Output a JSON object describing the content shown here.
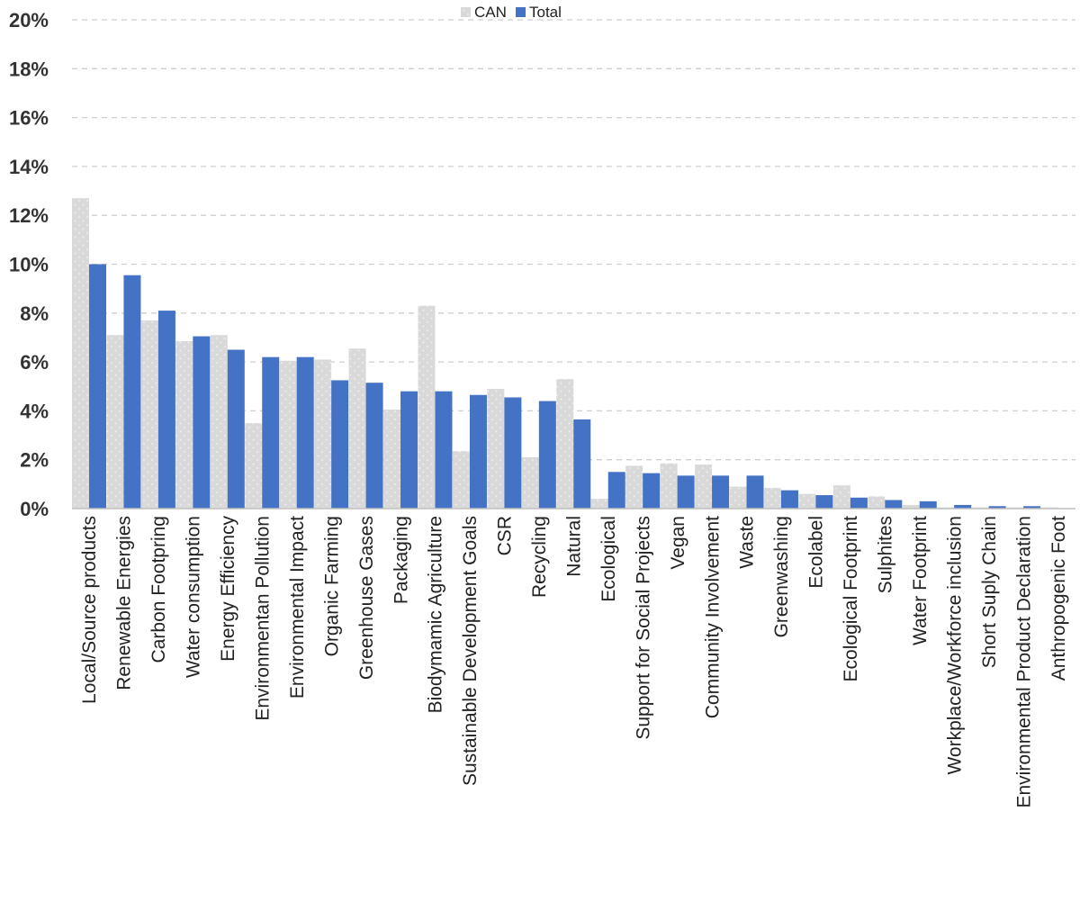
{
  "chart_data": {
    "type": "bar",
    "title": "",
    "xlabel": "",
    "ylabel": "",
    "ylim": [
      0,
      20
    ],
    "ytick_step": 2,
    "ytick_suffix": "%",
    "grid": true,
    "legend_position": "top-center",
    "categories": [
      "Local/Source products",
      "Renewable Energies",
      "Carbon Footpring",
      "Water consumption",
      "Energy Efficiency",
      "Environmentan Pollution",
      "Environmental Impact",
      "Organic Farming",
      "Greenhouse Gases",
      "Packaging",
      "Biodymamic Agriculture",
      "Sustainable Development Goals",
      "CSR",
      "Recycling",
      "Natural",
      "Ecological",
      "Support for Social Projects",
      "Vegan",
      "Community Involvement",
      "Waste",
      "Greenwashing",
      "Ecolabel",
      "Ecological Footprint",
      "Sulphites",
      "Water Footprint",
      "Workplace/Workforce inclusion",
      "Short Suply Chain",
      "Environmental Product Declaration",
      "Anthropogenic Foot"
    ],
    "series": [
      {
        "name": "CAN",
        "color": "#d9d9d9",
        "values": [
          12.7,
          7.1,
          7.7,
          6.85,
          7.1,
          3.5,
          6.05,
          6.1,
          6.55,
          4.05,
          8.3,
          2.35,
          4.9,
          2.1,
          5.3,
          0.4,
          1.75,
          1.85,
          1.8,
          0.9,
          0.85,
          0.6,
          0.95,
          0.5,
          0.15,
          0.05,
          0.05,
          0.05,
          0.05
        ]
      },
      {
        "name": "Total",
        "color": "#4472c4",
        "values": [
          10.0,
          9.55,
          8.1,
          7.05,
          6.5,
          6.2,
          6.2,
          5.25,
          5.15,
          4.8,
          4.8,
          4.65,
          4.55,
          4.4,
          3.65,
          1.5,
          1.45,
          1.35,
          1.35,
          1.35,
          0.75,
          0.55,
          0.45,
          0.35,
          0.3,
          0.15,
          0.1,
          0.1,
          0.0
        ]
      }
    ]
  }
}
